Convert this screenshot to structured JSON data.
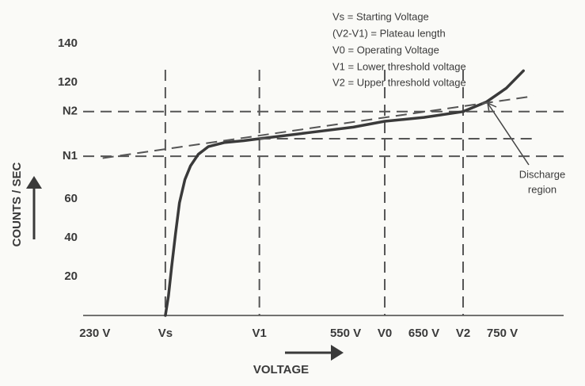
{
  "chart_data": {
    "type": "line",
    "notes": [
      "Vs = Starting Voltage",
      "(V2-V1)  = Plateau length",
      "V0 = Operating Voltage",
      "V1 = Lower threshold voltage",
      "V2 = Upper threshold voltage"
    ],
    "annotation": [
      "Discharge",
      "region"
    ],
    "ylabel": "COUNTS / SEC",
    "xlabel": "VOLTAGE",
    "xlim": [
      210,
      800
    ],
    "ylim": [
      0,
      150
    ],
    "xticks": [
      {
        "value": 230,
        "label": "230 V"
      },
      {
        "value": 550,
        "label": "550 V"
      },
      {
        "value": 650,
        "label": "650 V"
      },
      {
        "value": 750,
        "label": "750 V"
      }
    ],
    "yticks": [
      20,
      40,
      60,
      120,
      140
    ],
    "xmarkers": [
      {
        "value": 320,
        "label": "Vs"
      },
      {
        "value": 440,
        "label": "V1"
      },
      {
        "value": 600,
        "label": "V0"
      },
      {
        "value": 700,
        "label": "V2"
      }
    ],
    "ymarkers": [
      {
        "value": 105,
        "label": "N2"
      },
      {
        "value": 82,
        "label": "N1"
      }
    ],
    "series": [
      {
        "color": "#3a3a3a",
        "style": "solid",
        "x": [
          320,
          324,
          328,
          333,
          338,
          345,
          352,
          362,
          375,
          395,
          420,
          440,
          500,
          560,
          600,
          650,
          700,
          730,
          755,
          777
        ],
        "values": [
          0,
          10,
          25,
          42,
          58,
          70,
          77,
          83,
          87,
          89,
          90,
          91,
          94,
          97,
          100,
          102,
          105,
          110,
          117,
          126
        ]
      },
      {
        "color": "#555555",
        "style": "dashed",
        "x": [
          240,
          790
        ],
        "values": [
          81,
          113
        ]
      },
      {
        "color": "#555555",
        "style": "dashed",
        "x": [
          440,
          790
        ],
        "values": [
          91,
          91
        ]
      }
    ]
  }
}
